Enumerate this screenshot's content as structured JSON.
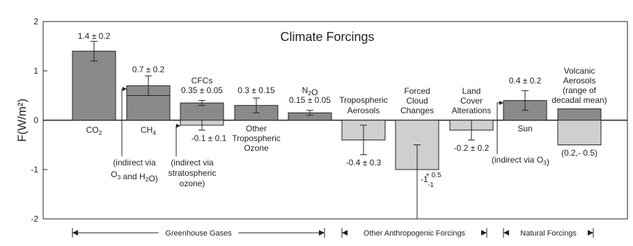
{
  "chart_data": {
    "type": "bar",
    "title": "Climate Forcings",
    "ylabel": "F(W/m²)",
    "ylim": [
      -2,
      2
    ],
    "yticks": [
      2,
      1,
      0,
      -1,
      -2
    ],
    "colors": {
      "positive": "#8a8a8a",
      "negative": "#cfcfcf",
      "axis": "#222222"
    },
    "bars": [
      {
        "id": "co2",
        "value": 1.4,
        "err": 0.2,
        "label": "CO",
        "label_sub": "2",
        "value_label": "1.4 ± 0.2"
      },
      {
        "id": "ch4",
        "value": 0.7,
        "err": 0.2,
        "direct": 0.5,
        "label": "CH",
        "label_sub": "4",
        "value_label": "0.7 ± 0.2",
        "note": {
          "l1": "(indirect via",
          "l2a": "O",
          "l2b": "3",
          "l2c": " and H",
          "l2d": "2",
          "l2e": "O)"
        }
      },
      {
        "id": "cfcs",
        "value": 0.35,
        "err": 0.05,
        "value_label": "0.35 ± 0.05",
        "label_top": "CFCs",
        "neg_value": -0.1,
        "neg_err": 0.1,
        "neg_label": "-0.1 ± 0.1",
        "note": {
          "l1": "(indirect via",
          "l2": "stratospheric",
          "l3": "ozone)"
        }
      },
      {
        "id": "o3",
        "value": 0.3,
        "err": 0.15,
        "value_label": "0.3 ± 0.15",
        "label_l1": "Other",
        "label_l2": "Tropospheric",
        "label_l3": "Ozone"
      },
      {
        "id": "n2o",
        "value": 0.15,
        "err": 0.05,
        "value_label": "0.15 ± 0.05",
        "label_top_a": "N",
        "label_top_b": "2",
        "label_top_c": "O"
      },
      {
        "id": "aerosols",
        "value": -0.4,
        "err": 0.3,
        "value_label": "-0.4 ± 0.3",
        "label_l1": "Tropospheric",
        "label_l2": "Aerosols"
      },
      {
        "id": "clouds",
        "value": -1.0,
        "err_plus": 0.5,
        "err_minus": 1.0,
        "value_label": "-1",
        "err_plus_label": "+ 0.5",
        "err_minus_label": "-1",
        "label_l1": "Forced",
        "label_l2": "Cloud",
        "label_l3": "Changes"
      },
      {
        "id": "land",
        "value": -0.2,
        "err": 0.2,
        "value_label": "-0.2 ± 0.2",
        "label_l1": "Land",
        "label_l2": "Cover",
        "label_l3": "Alterations"
      },
      {
        "id": "sun",
        "value": 0.4,
        "err": 0.2,
        "value_label": "0.4 ± 0.2",
        "label": "Sun",
        "note": {
          "a": "(indirect via O",
          "b": "3",
          "c": ")"
        }
      },
      {
        "id": "volcanic",
        "value": 0.23,
        "neg_value": -0.5,
        "value_label": "(0.2,- 0.5)",
        "label_l1": "Volcanic",
        "label_l2": "Aerosols",
        "label_l3": "(range of",
        "label_l4": "decadal mean)"
      }
    ],
    "groups": [
      {
        "label": "Greenhouse Gases"
      },
      {
        "label": "Other Anthropogenic Forcings"
      },
      {
        "label": "Natural Forcings"
      }
    ]
  }
}
